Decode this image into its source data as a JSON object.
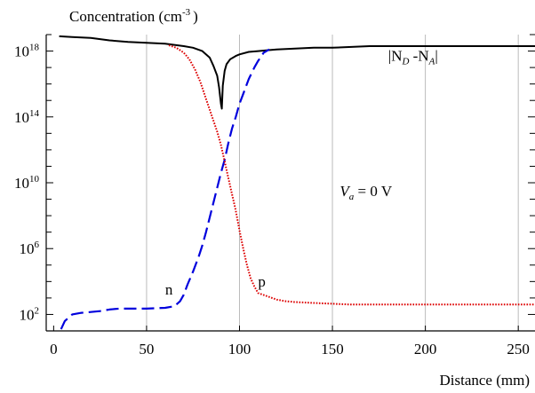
{
  "chart_data": {
    "type": "line",
    "title": "Concentration (cm",
    "title_sup": "-3",
    "title_close": ")",
    "xlabel": "Distance (mm)",
    "xlim": [
      -4,
      259
    ],
    "ylog": true,
    "ylim_log10": [
      1,
      19
    ],
    "grid": "x-only",
    "xticks": [
      0,
      50,
      100,
      150,
      200,
      250
    ],
    "xtick_labels": [
      "0",
      "50",
      "100",
      "150",
      "200",
      "250"
    ],
    "ytick_exponents": [
      2,
      6,
      10,
      14,
      18
    ],
    "ytick_base": "10",
    "annotations": {
      "net_doping_label": {
        "pipe_left": "|",
        "nd": "N",
        "nd_sub": "D",
        "mid": " -N",
        "na_sub": "A",
        "pipe_right": "|",
        "x": 180,
        "y_log": 17.4
      },
      "voltage_label": {
        "v": "V",
        "v_sub": "a",
        "rest": " = 0 V",
        "x": 154,
        "y_log": 9.2
      },
      "n_label": {
        "text": "n",
        "x": 60,
        "y_log": 3.2
      },
      "p_label": {
        "text": "p",
        "x": 110,
        "y_log": 3.7
      }
    },
    "series": [
      {
        "key": "net_doping",
        "color": "#000000",
        "style": "solid",
        "x": [
          3,
          10,
          20,
          30,
          40,
          50,
          60,
          70,
          75,
          80,
          84,
          86,
          88,
          89,
          90,
          90.5,
          91,
          92,
          93,
          95,
          98,
          100,
          105,
          110,
          115,
          120,
          130,
          140,
          150,
          170,
          200,
          230,
          259
        ],
        "y_log10": [
          18.9,
          18.85,
          18.8,
          18.65,
          18.55,
          18.5,
          18.45,
          18.3,
          18.2,
          18.0,
          17.6,
          17.1,
          16.5,
          15.8,
          14.8,
          14.5,
          15.9,
          16.8,
          17.2,
          17.5,
          17.7,
          17.8,
          17.95,
          18.0,
          18.05,
          18.1,
          18.15,
          18.2,
          18.2,
          18.3,
          18.3,
          18.3,
          18.3
        ]
      },
      {
        "key": "electrons",
        "color": "#0000dd",
        "style": "dashed",
        "x": [
          4,
          6,
          10,
          15,
          20,
          25,
          30,
          35,
          40,
          50,
          60,
          65,
          68,
          70,
          72,
          75,
          78,
          80,
          82,
          84,
          86,
          88,
          90,
          92,
          94,
          96,
          98,
          100,
          102,
          105,
          108,
          110,
          113,
          116
        ],
        "y_log10": [
          1.1,
          1.6,
          2.0,
          2.1,
          2.15,
          2.2,
          2.3,
          2.35,
          2.35,
          2.35,
          2.4,
          2.5,
          2.8,
          3.2,
          3.8,
          4.6,
          5.5,
          6.2,
          7.0,
          7.9,
          8.8,
          9.7,
          10.6,
          11.4,
          12.4,
          13.3,
          14.0,
          14.8,
          15.4,
          16.3,
          17.0,
          17.4,
          17.9,
          18.1
        ]
      },
      {
        "key": "holes",
        "color": "#dd0000",
        "style": "dotted",
        "x": [
          62,
          66,
          70,
          73,
          76,
          79,
          82,
          85,
          88,
          90,
          92,
          94,
          96,
          98,
          100,
          102,
          104,
          106,
          108,
          110,
          115,
          120,
          125,
          130,
          140,
          150,
          160,
          180,
          200,
          220,
          240,
          259
        ],
        "y_log10": [
          18.35,
          18.2,
          17.9,
          17.5,
          16.9,
          16.1,
          15.1,
          14.1,
          13.1,
          12.3,
          11.3,
          10.3,
          9.3,
          8.3,
          7.1,
          6.0,
          5.0,
          4.2,
          3.7,
          3.3,
          3.1,
          2.9,
          2.8,
          2.75,
          2.7,
          2.65,
          2.6,
          2.6,
          2.6,
          2.6,
          2.6,
          2.6
        ]
      }
    ]
  }
}
